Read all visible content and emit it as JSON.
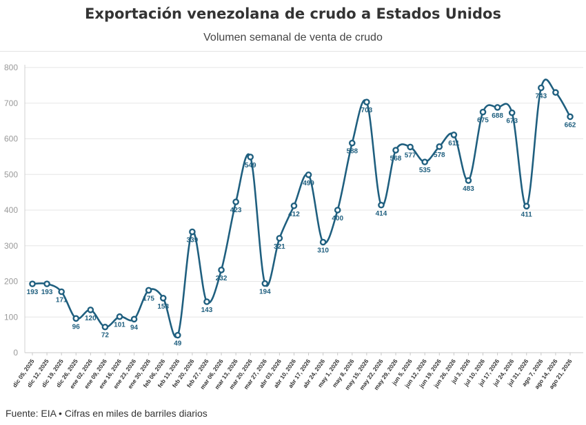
{
  "chart_data": {
    "type": "line",
    "title": "Exportación venezolana de crudo a Estados Unidos",
    "subtitle": "Volumen semanal de venta de crudo",
    "xlabel": "",
    "ylabel": "",
    "ylim": [
      0,
      800
    ],
    "yticks": [
      0,
      100,
      200,
      300,
      400,
      500,
      600,
      700,
      800
    ],
    "grid": true,
    "line_color": "#1f5f7f",
    "categories": [
      "dic 05, 2025",
      "dic 12, 2025",
      "dic 19, 2025",
      "dic 26, 2025",
      "ene 02, 2026",
      "ene 09, 2026",
      "ene 16, 2026",
      "ene 23, 2026",
      "ene 30, 2026",
      "feb 06, 2026",
      "feb 13, 2026",
      "feb 20, 2026",
      "feb 27, 2026",
      "mar 06, 2026",
      "mar 13, 2026",
      "mar 20, 2026",
      "mar 27, 2026",
      "abr 03, 2026",
      "abr 10, 2026",
      "abr 17, 2026",
      "abr 24, 2026",
      "may 1, 2026",
      "may 8, 2026",
      "may 15, 2026",
      "may 22, 2026",
      "may 29, 2026",
      "jun 5, 2026",
      "jun 12, 2026",
      "jun 19, 2026",
      "jun 26, 2026",
      "jul 3, 2026",
      "jul 10, 2026",
      "jul 17, 2026",
      "jul 24, 2026",
      "jul 31, 2026",
      "ago 7, 2026",
      "ago 14, 2026",
      "ago 21, 2026"
    ],
    "values": [
      193,
      193,
      171,
      96,
      120,
      72,
      101,
      94,
      175,
      153,
      49,
      339,
      143,
      232,
      423,
      549,
      194,
      321,
      412,
      499,
      310,
      400,
      588,
      703,
      414,
      568,
      577,
      535,
      578,
      611,
      483,
      675,
      688,
      673,
      411,
      743,
      730,
      662
    ],
    "data_labels": [
      "193",
      "193",
      "171",
      "96",
      "120",
      "72",
      "101",
      "94",
      "175",
      "153",
      "49",
      "339",
      "143",
      "232",
      "423",
      "549",
      "194",
      "321",
      "412",
      "499",
      "310",
      "400",
      "588",
      "703",
      "414",
      "568",
      "577",
      "535",
      "578",
      "611",
      "483",
      "675",
      "688",
      "673",
      "411",
      "743",
      "",
      "662"
    ]
  },
  "footer": "Fuente: EIA • Cifras en miles de barriles diarios"
}
